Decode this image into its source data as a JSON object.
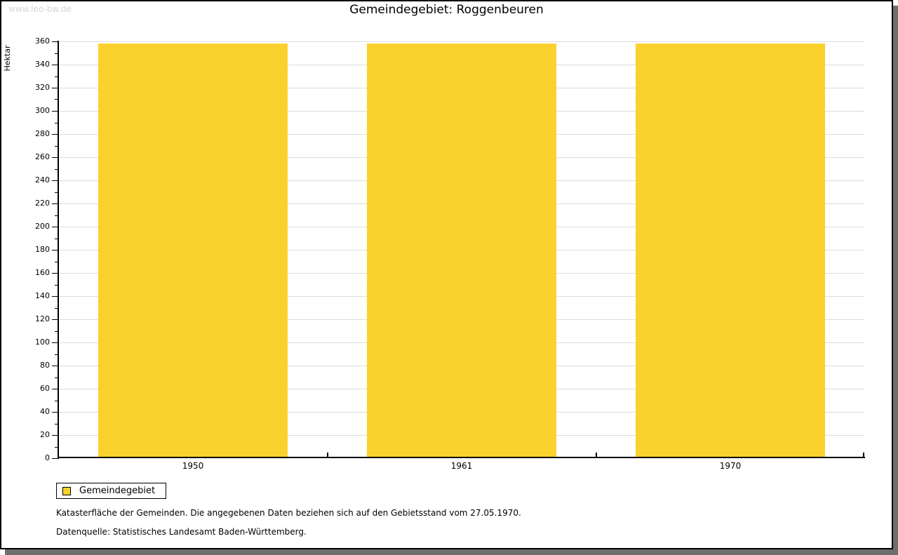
{
  "watermark": "www.leo-bw.de",
  "title": "Gemeindegebiet: Roggenbeuren",
  "chart_data": {
    "type": "bar",
    "title": "Gemeindegebiet: Roggenbeuren",
    "categories": [
      "1950",
      "1961",
      "1970"
    ],
    "series": [
      {
        "name": "Gemeindegebiet",
        "values": [
          358,
          358,
          358
        ]
      }
    ],
    "xlabel": "",
    "ylabel": "Hektar",
    "ylim": [
      0,
      360
    ],
    "ytick_major": 20,
    "ytick_minor": 10,
    "grid": true,
    "legend_position": "bottom-left",
    "unit": "Hektar"
  },
  "legend": {
    "items": [
      {
        "label": "Gemeindegebiet",
        "color": "#FBD22D"
      }
    ]
  },
  "footer": {
    "line1": "Katasterfläche der Gemeinden. Die angegebenen Daten beziehen sich auf den Gebietsstand vom 27.05.1970.",
    "line2": "Datenquelle: Statistisches Landesamt Baden-Württemberg."
  },
  "colors": {
    "bar": "#FBD22D",
    "grid": "#DCDCDC",
    "axis": "#000000",
    "frame_shadow": "#6F6F6F",
    "watermark": "#D6D6D6",
    "background": "#FFFFFF",
    "text": "#000000"
  }
}
